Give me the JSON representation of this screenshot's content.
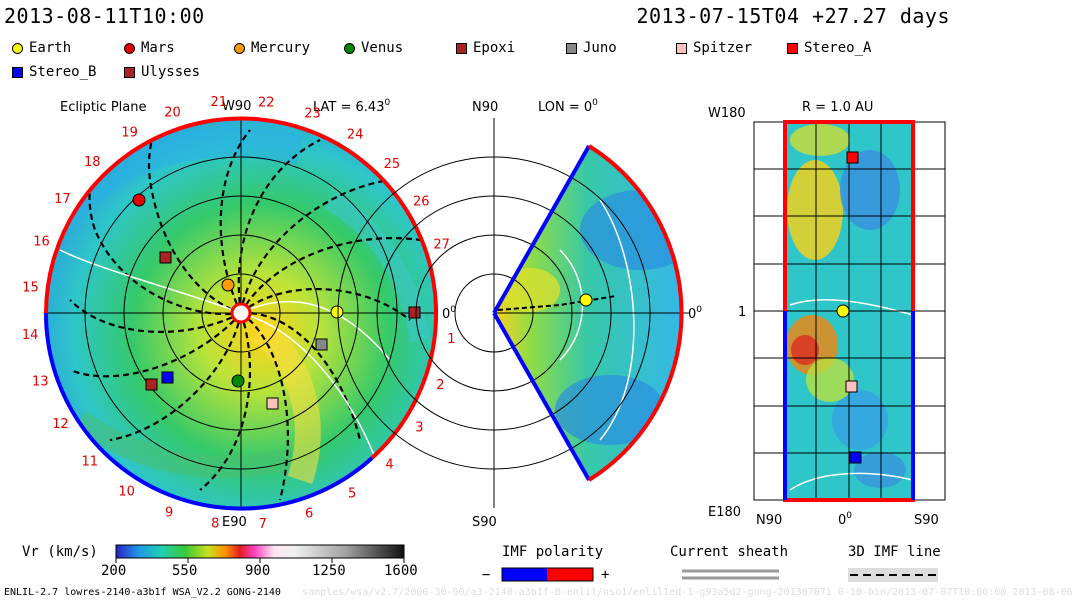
{
  "header": {
    "time_left": "2013-08-11T10:00",
    "time_right": "2013-07-15T04 +27.27 days"
  },
  "legend": [
    {
      "label": "Earth",
      "color": "#ffff00",
      "shape": "circle"
    },
    {
      "label": "Mars",
      "color": "#e00000",
      "shape": "circle"
    },
    {
      "label": "Mercury",
      "color": "#ff9900",
      "shape": "circle"
    },
    {
      "label": "Venus",
      "color": "#008800",
      "shape": "circle"
    },
    {
      "label": "Epoxi",
      "color": "#aa2222",
      "shape": "square"
    },
    {
      "label": "Juno",
      "color": "#888888",
      "shape": "square"
    },
    {
      "label": "Spitzer",
      "color": "#ffc0c0",
      "shape": "square"
    },
    {
      "label": "Stereo_A",
      "color": "#ff0000",
      "shape": "square"
    },
    {
      "label": "Stereo_B",
      "color": "#0000ff",
      "shape": "square"
    },
    {
      "label": "Ulysses",
      "color": "#aa2222",
      "shape": "square"
    }
  ],
  "panels": {
    "ecliptic": {
      "title": "Ecliptic Plane",
      "lat": "LAT = 6.43",
      "lat_sup": "0",
      "top_label": "W90",
      "bottom_label": "E90",
      "right_label": "0",
      "right_sup": "0",
      "numbers": [
        "1",
        "2",
        "3",
        "4",
        "5",
        "6",
        "7",
        "8",
        "9",
        "10",
        "11",
        "12",
        "13",
        "14",
        "15",
        "16",
        "17",
        "18",
        "19",
        "20",
        "21",
        "22",
        "23",
        "24",
        "25",
        "26",
        "27"
      ]
    },
    "meridional": {
      "title": "LON = 0",
      "title_sup": "0",
      "top_label": "N90",
      "bottom_label": "S90",
      "right_label": "0",
      "right_sup": "0"
    },
    "sphere": {
      "title": "R = 1.0 AU",
      "top_left": "W180",
      "bottom_left": "E180",
      "mid_left": "1",
      "bottom_n": "N90",
      "bottom_mid": "0",
      "bottom_mid_sup": "0",
      "bottom_s": "S90"
    }
  },
  "colorbar": {
    "title": "Vr (km/s)",
    "ticks": [
      "200",
      "550",
      "900",
      "1250",
      "1600"
    ]
  },
  "imf": {
    "title": "IMF polarity",
    "minus": "−",
    "plus": "+",
    "neg_color": "#0000ff",
    "pos_color": "#ff0000"
  },
  "sheath": {
    "title": "Current sheath"
  },
  "imf3d": {
    "title": "3D IMF line"
  },
  "footer": {
    "left": "ENLIL-2.7 lowres-2140-a3b1f WSA_V2.2 GONG-2140",
    "faint": "samples/wsa/v2.7/2000-30-90/a3-2140-a3b1f-B-enlil/nso1/enlil1ed-1-g93a5d2-gong-201307071 0-10-bin/2013-07-07T10:00:00        2013-08-06"
  }
}
